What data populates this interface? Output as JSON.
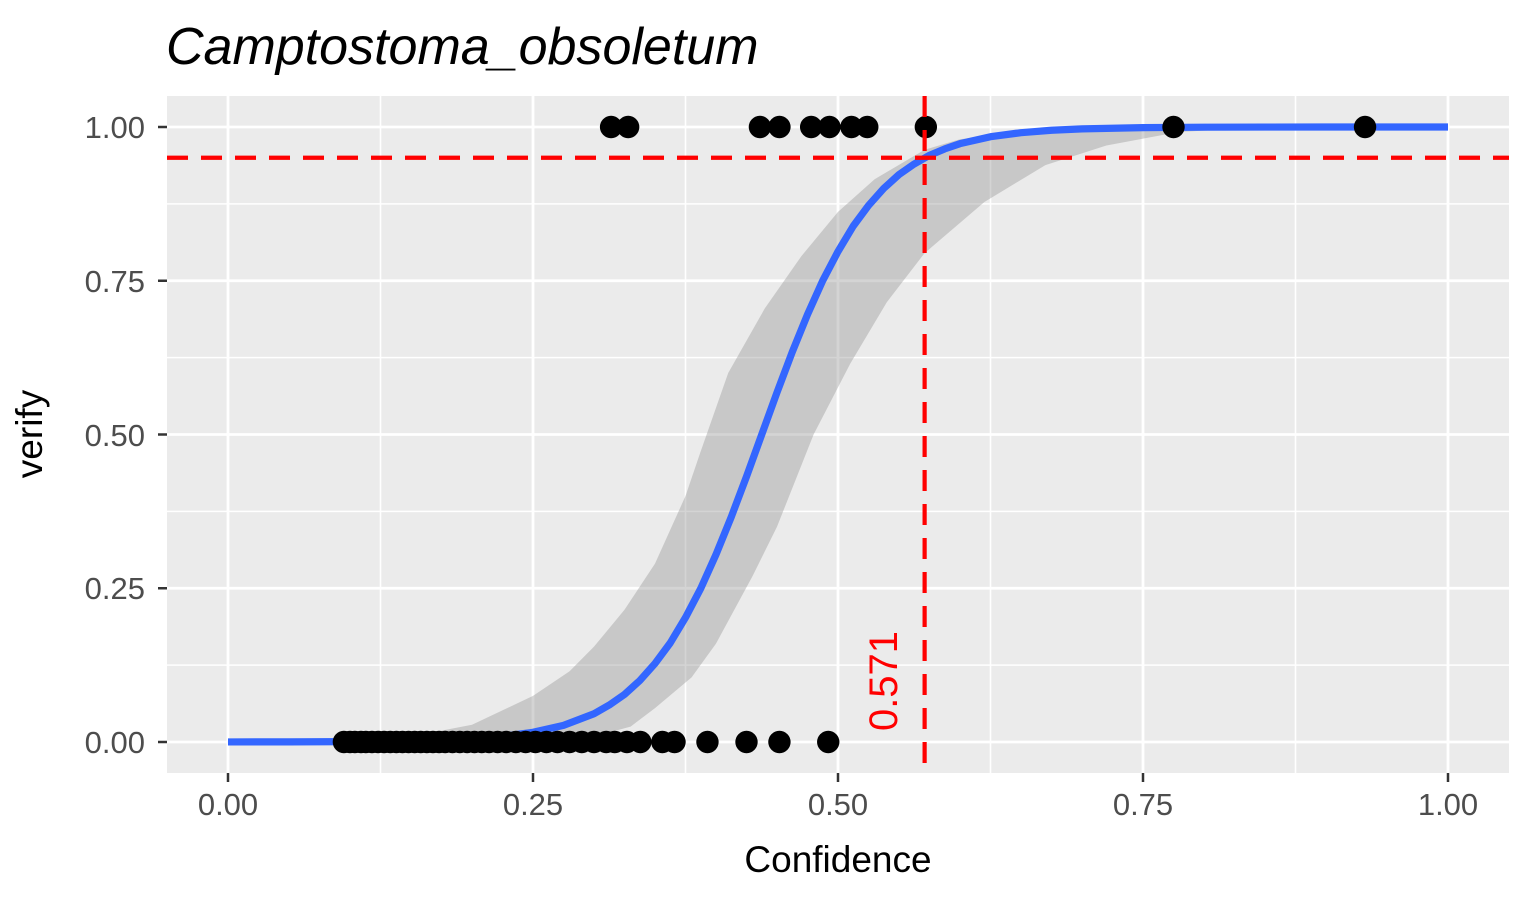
{
  "chart_data": {
    "type": "scatter",
    "title": "Camptostoma_obsoletum",
    "xlabel": "Confidence",
    "ylabel": "verify",
    "xlim": [
      -0.05,
      1.05
    ],
    "ylim": [
      -0.05,
      1.05
    ],
    "grid": true,
    "legend": false,
    "x_tick_labels": [
      "0.00",
      "0.25",
      "0.50",
      "0.75",
      "1.00"
    ],
    "y_tick_labels": [
      "0.00",
      "0.25",
      "0.50",
      "0.75",
      "1.00"
    ],
    "x_major_ticks": [
      0,
      0.25,
      0.5,
      0.75,
      1.0
    ],
    "y_major_ticks": [
      0,
      0.25,
      0.5,
      0.75,
      1.0
    ],
    "x_minor_ticks": [
      0.125,
      0.375,
      0.625,
      0.875
    ],
    "y_minor_ticks": [
      0.125,
      0.375,
      0.625,
      0.875
    ],
    "series": [
      {
        "name": "observations_verify_1",
        "type": "scatter",
        "y": 1.0,
        "x": [
          0.314,
          0.328,
          0.436,
          0.452,
          0.478,
          0.493,
          0.511,
          0.524,
          0.572,
          0.775,
          0.932
        ]
      },
      {
        "name": "observations_verify_0",
        "type": "scatter",
        "y": 0.0,
        "x": [
          0.095,
          0.1,
          0.104,
          0.109,
          0.113,
          0.118,
          0.123,
          0.128,
          0.133,
          0.138,
          0.143,
          0.148,
          0.153,
          0.158,
          0.163,
          0.168,
          0.173,
          0.178,
          0.184,
          0.19,
          0.196,
          0.202,
          0.208,
          0.214,
          0.221,
          0.228,
          0.236,
          0.244,
          0.252,
          0.261,
          0.27,
          0.28,
          0.29,
          0.3,
          0.31,
          0.317,
          0.327,
          0.338,
          0.356,
          0.366,
          0.393,
          0.425,
          0.452,
          0.492
        ]
      },
      {
        "name": "logistic_fit",
        "type": "line",
        "points": [
          [
            0.0,
            0.0001
          ],
          [
            0.05,
            0.0002
          ],
          [
            0.1,
            0.0006
          ],
          [
            0.125,
            0.001
          ],
          [
            0.15,
            0.0018
          ],
          [
            0.175,
            0.0031
          ],
          [
            0.2,
            0.0053
          ],
          [
            0.225,
            0.0092
          ],
          [
            0.25,
            0.0158
          ],
          [
            0.275,
            0.0271
          ],
          [
            0.3,
            0.046
          ],
          [
            0.3125,
            0.0601
          ],
          [
            0.325,
            0.0774
          ],
          [
            0.3375,
            0.0998
          ],
          [
            0.35,
            0.1276
          ],
          [
            0.3625,
            0.1611
          ],
          [
            0.375,
            0.2024
          ],
          [
            0.3875,
            0.2497
          ],
          [
            0.4,
            0.3049
          ],
          [
            0.4125,
            0.3659
          ],
          [
            0.425,
            0.4316
          ],
          [
            0.4375,
            0.5
          ],
          [
            0.45,
            0.5684
          ],
          [
            0.4625,
            0.6341
          ],
          [
            0.475,
            0.6951
          ],
          [
            0.4875,
            0.7503
          ],
          [
            0.5,
            0.7976
          ],
          [
            0.5125,
            0.8389
          ],
          [
            0.525,
            0.8724
          ],
          [
            0.5375,
            0.9002
          ],
          [
            0.55,
            0.9226
          ],
          [
            0.5625,
            0.9399
          ],
          [
            0.575,
            0.954
          ],
          [
            0.5875,
            0.9644
          ],
          [
            0.6,
            0.9729
          ],
          [
            0.625,
            0.9842
          ],
          [
            0.65,
            0.9908
          ],
          [
            0.675,
            0.9947
          ],
          [
            0.7,
            0.9969
          ],
          [
            0.75,
            0.999
          ],
          [
            0.8,
            0.9997
          ],
          [
            0.85,
            0.9999
          ],
          [
            0.9,
            1.0
          ],
          [
            0.95,
            1.0
          ],
          [
            1.0,
            1.0
          ]
        ]
      },
      {
        "name": "confidence_band",
        "type": "area",
        "upper": [
          [
            0.1,
            0.003
          ],
          [
            0.15,
            0.009
          ],
          [
            0.2,
            0.028
          ],
          [
            0.25,
            0.075
          ],
          [
            0.28,
            0.115
          ],
          [
            0.3,
            0.155
          ],
          [
            0.325,
            0.215
          ],
          [
            0.35,
            0.29
          ],
          [
            0.375,
            0.4
          ],
          [
            0.387,
            0.47
          ],
          [
            0.41,
            0.6
          ],
          [
            0.44,
            0.705
          ],
          [
            0.47,
            0.79
          ],
          [
            0.5,
            0.862
          ],
          [
            0.53,
            0.915
          ],
          [
            0.571,
            0.963
          ],
          [
            0.6,
            0.98
          ],
          [
            0.65,
            0.993
          ],
          [
            0.7,
            0.998
          ],
          [
            0.8,
            1.0
          ],
          [
            1.0,
            1.0
          ]
        ],
        "lower": [
          [
            0.1,
            0.0
          ],
          [
            0.2,
            0.0005
          ],
          [
            0.25,
            0.002
          ],
          [
            0.3,
            0.009
          ],
          [
            0.33,
            0.025
          ],
          [
            0.35,
            0.055
          ],
          [
            0.38,
            0.105
          ],
          [
            0.4,
            0.16
          ],
          [
            0.43,
            0.27
          ],
          [
            0.45,
            0.35
          ],
          [
            0.48,
            0.5
          ],
          [
            0.51,
            0.615
          ],
          [
            0.54,
            0.715
          ],
          [
            0.571,
            0.795
          ],
          [
            0.62,
            0.878
          ],
          [
            0.67,
            0.938
          ],
          [
            0.72,
            0.97
          ],
          [
            0.78,
            0.992
          ],
          [
            0.84,
            0.998
          ],
          [
            0.9,
            1.0
          ],
          [
            1.0,
            1.0
          ]
        ]
      }
    ],
    "annotations": {
      "h_line": {
        "y": 0.95,
        "style": "dashed",
        "color": "#FF0000"
      },
      "v_line": {
        "x": 0.571,
        "style": "dashed",
        "color": "#FF0000",
        "label": "0.571"
      }
    },
    "colors": {
      "background": "#FFFFFF",
      "panel": "#EBEBEB",
      "grid": "#FFFFFF",
      "curve": "#3366FF",
      "band": "rgba(153,153,153,0.42)",
      "point": "#000000",
      "threshold": "#FF0000",
      "tick_mark": "#333333",
      "tick_label": "#4D4D4D",
      "text": "#000000"
    }
  }
}
